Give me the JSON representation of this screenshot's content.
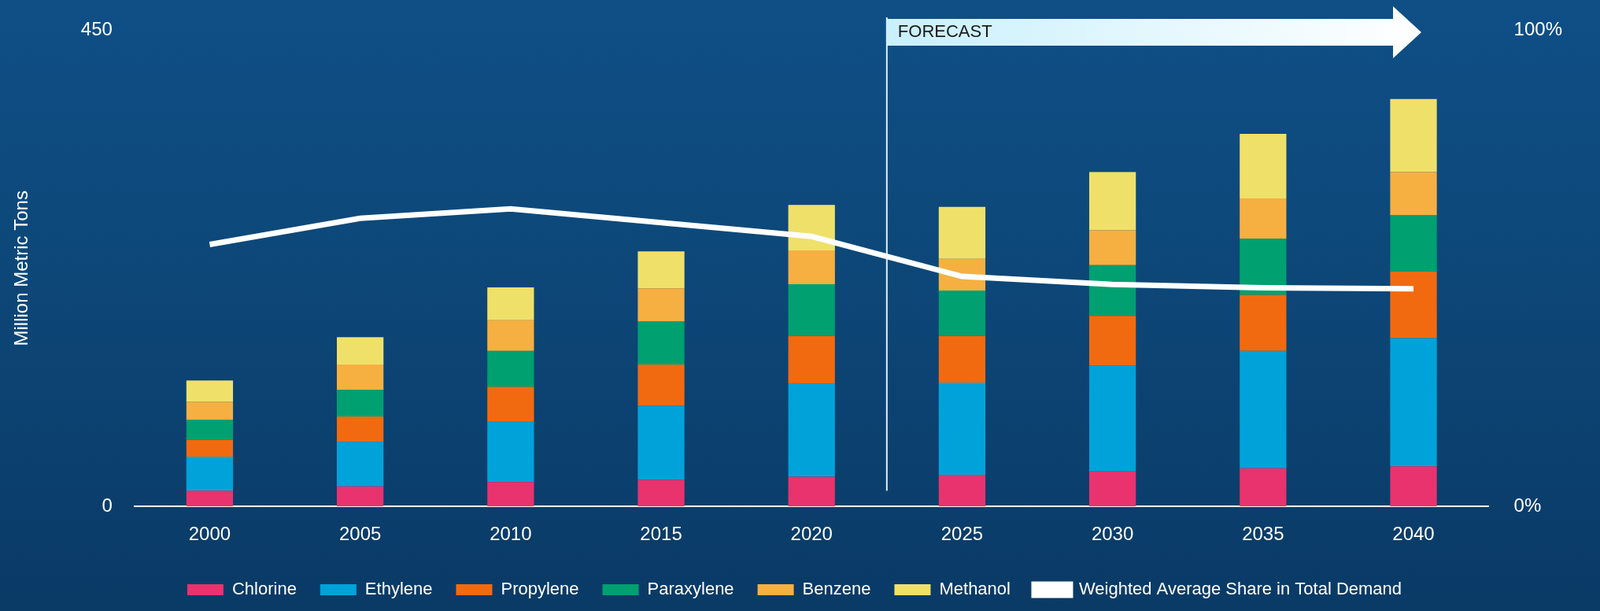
{
  "chart_data": {
    "type": "bar",
    "stacked": true,
    "categories": [
      "2000",
      "2005",
      "2010",
      "2015",
      "2020",
      "2025",
      "2030",
      "2035",
      "2040"
    ],
    "y_label": "Million Metric Tons",
    "ylim": [
      0,
      450
    ],
    "yticks": [
      0,
      450
    ],
    "y2lim": [
      0,
      100
    ],
    "y2ticks": [
      {
        "value": 0,
        "label": "0%"
      },
      {
        "value": 100,
        "label": "100%"
      }
    ],
    "grid": false,
    "legend": "bottom",
    "annotations": [
      {
        "text": "FORECAST",
        "after": "2020"
      }
    ],
    "series": [
      {
        "name": "Chlorine",
        "color": "#e8336e",
        "values": [
          15,
          19,
          23,
          25,
          28,
          30,
          33,
          36,
          38
        ]
      },
      {
        "name": "Ethylene",
        "color": "#00a3d9",
        "values": [
          32,
          42,
          57,
          70,
          88,
          87,
          100,
          111,
          121
        ]
      },
      {
        "name": "Propylene",
        "color": "#f26a10",
        "values": [
          16,
          24,
          33,
          39,
          45,
          44,
          47,
          53,
          63
        ]
      },
      {
        "name": "Paraxylene",
        "color": "#00a070",
        "values": [
          19,
          25,
          34,
          41,
          49,
          43,
          48,
          53,
          53
        ]
      },
      {
        "name": "Benzene",
        "color": "#f5b041",
        "values": [
          17,
          24,
          29,
          31,
          32,
          30,
          33,
          38,
          41
        ]
      },
      {
        "name": "Methanol",
        "color": "#efe06a",
        "values": [
          20,
          26,
          31,
          35,
          43,
          49,
          55,
          61,
          69
        ]
      },
      {
        "name": "Weighted Average Share in Total Demand",
        "color": "#ffffff",
        "type": "line",
        "axis": "y2",
        "marker": "none",
        "values": [
          55,
          60.5,
          62.5,
          59.6,
          56.7,
          48.3,
          46.6,
          45.9,
          45.7
        ]
      }
    ]
  }
}
